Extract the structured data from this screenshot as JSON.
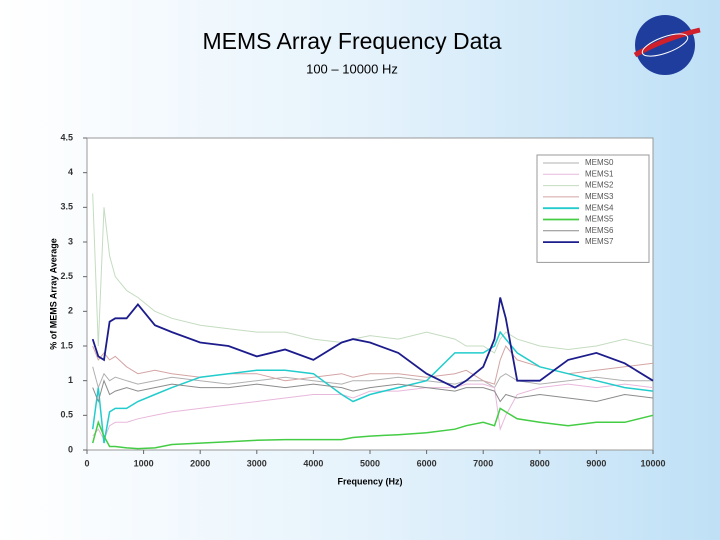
{
  "chart_data": {
    "type": "line",
    "title": "MEMS Array Frequency Data",
    "subtitle": "100 – 10000 Hz",
    "x_label": "Frequency (Hz)",
    "y_label": "% of MEMS Array Average",
    "xlim": [
      0,
      10000
    ],
    "ylim": [
      0,
      4.5
    ],
    "xticks": [
      0,
      1000,
      2000,
      3000,
      4000,
      5000,
      6000,
      7000,
      8000,
      9000,
      10000
    ],
    "yticks": [
      0,
      0.5,
      1,
      1.5,
      2,
      2.5,
      3,
      3.5,
      4,
      4.5
    ],
    "grid": false,
    "legend": "upper right",
    "x": [
      100,
      200,
      300,
      400,
      500,
      700,
      900,
      1200,
      1500,
      2000,
      2500,
      3000,
      3500,
      4000,
      4500,
      4700,
      5000,
      5500,
      6000,
      6500,
      6700,
      7000,
      7200,
      7300,
      7400,
      7600,
      8000,
      8500,
      9000,
      9500,
      10000
    ],
    "series": [
      {
        "name": "MEMS0",
        "color": "#b0b0b0",
        "values": [
          1.2,
          0.9,
          1.1,
          1.0,
          1.05,
          1.0,
          0.95,
          1.0,
          1.05,
          1.0,
          0.95,
          1.0,
          1.05,
          1.0,
          0.95,
          1.0,
          1.0,
          1.05,
          1.0,
          0.95,
          1.0,
          1.0,
          0.9,
          1.05,
          1.1,
          1.0,
          0.95,
          1.0,
          1.05,
          1.0,
          1.0
        ]
      },
      {
        "name": "MEMS1",
        "color": "#e8b8dc",
        "values": [
          0.2,
          0.3,
          0.15,
          0.35,
          0.4,
          0.4,
          0.45,
          0.5,
          0.55,
          0.6,
          0.65,
          0.7,
          0.75,
          0.8,
          0.8,
          0.75,
          0.85,
          0.85,
          0.9,
          0.9,
          0.95,
          0.95,
          0.9,
          0.3,
          0.5,
          0.8,
          0.9,
          0.95,
          0.9,
          0.95,
          0.9
        ]
      },
      {
        "name": "MEMS2",
        "color": "#c4dcc0",
        "values": [
          3.7,
          1.5,
          3.5,
          2.8,
          2.5,
          2.3,
          2.2,
          2.0,
          1.9,
          1.8,
          1.75,
          1.7,
          1.7,
          1.6,
          1.55,
          1.6,
          1.65,
          1.6,
          1.7,
          1.6,
          1.5,
          1.5,
          1.4,
          1.6,
          1.7,
          1.6,
          1.5,
          1.45,
          1.5,
          1.6,
          1.5
        ]
      },
      {
        "name": "MEMS3",
        "color": "#d4a4a4",
        "values": [
          1.5,
          1.3,
          1.4,
          1.3,
          1.35,
          1.2,
          1.1,
          1.15,
          1.1,
          1.05,
          1.1,
          1.1,
          1.0,
          1.05,
          1.1,
          1.05,
          1.1,
          1.1,
          1.05,
          1.1,
          1.15,
          1.0,
          0.95,
          1.3,
          1.5,
          1.3,
          1.2,
          1.1,
          1.15,
          1.2,
          1.25
        ]
      },
      {
        "name": "MEMS4",
        "color": "#22cccc",
        "values": [
          0.3,
          0.9,
          0.1,
          0.55,
          0.6,
          0.6,
          0.7,
          0.8,
          0.9,
          1.05,
          1.1,
          1.15,
          1.15,
          1.1,
          0.8,
          0.7,
          0.8,
          0.9,
          1.0,
          1.4,
          1.4,
          1.4,
          1.5,
          1.7,
          1.6,
          1.4,
          1.2,
          1.1,
          1.0,
          0.9,
          0.85
        ]
      },
      {
        "name": "MEMS5",
        "color": "#44cc44",
        "values": [
          0.1,
          0.4,
          0.2,
          0.05,
          0.05,
          0.03,
          0.02,
          0.03,
          0.08,
          0.1,
          0.12,
          0.14,
          0.15,
          0.15,
          0.15,
          0.18,
          0.2,
          0.22,
          0.25,
          0.3,
          0.35,
          0.4,
          0.35,
          0.6,
          0.55,
          0.45,
          0.4,
          0.35,
          0.4,
          0.4,
          0.5
        ]
      },
      {
        "name": "MEMS6",
        "color": "#8c8c8c",
        "values": [
          0.9,
          0.7,
          1.0,
          0.8,
          0.85,
          0.9,
          0.85,
          0.9,
          0.95,
          0.9,
          0.9,
          0.95,
          0.9,
          0.95,
          0.9,
          0.85,
          0.9,
          0.95,
          0.9,
          0.85,
          0.9,
          0.9,
          0.85,
          0.7,
          0.8,
          0.75,
          0.8,
          0.75,
          0.7,
          0.8,
          0.75
        ]
      },
      {
        "name": "MEMS7",
        "color": "#1c1c8c",
        "values": [
          1.6,
          1.35,
          1.3,
          1.85,
          1.9,
          1.9,
          2.1,
          1.8,
          1.7,
          1.55,
          1.5,
          1.35,
          1.45,
          1.3,
          1.55,
          1.6,
          1.55,
          1.4,
          1.1,
          0.9,
          1.0,
          1.2,
          1.6,
          2.2,
          1.9,
          1.0,
          1.0,
          1.3,
          1.4,
          1.25,
          1.0
        ]
      }
    ]
  }
}
